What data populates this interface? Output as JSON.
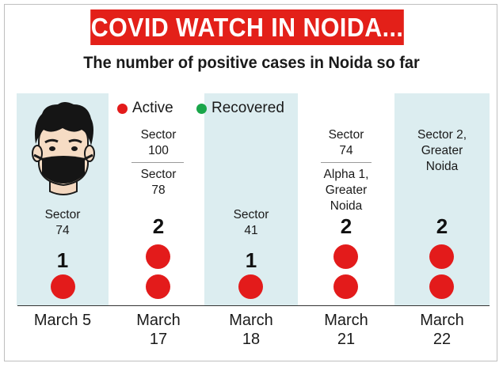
{
  "header": {
    "title": "COVID WATCH IN NOIDA...",
    "subtitle": "The number of positive cases in Noida so far"
  },
  "legend": {
    "active_label": "Active",
    "recovered_label": "Recovered",
    "active_color": "#e31b1b",
    "recovered_color": "#1aa64a"
  },
  "columns": [
    {
      "date_line1": "March 5",
      "date_line2": "",
      "sectors": [
        [
          "Sector",
          "74"
        ]
      ],
      "count": "1",
      "active": 1
    },
    {
      "date_line1": "March",
      "date_line2": "17",
      "sectors": [
        [
          "Sector",
          "100"
        ],
        [
          "Sector",
          "78"
        ]
      ],
      "count": "2",
      "active": 2
    },
    {
      "date_line1": "March",
      "date_line2": "18",
      "sectors": [
        [
          "Sector",
          "41"
        ]
      ],
      "count": "1",
      "active": 1
    },
    {
      "date_line1": "March",
      "date_line2": "21",
      "sectors": [
        [
          "Sector",
          "74"
        ],
        [
          "Alpha 1,",
          "Greater",
          "Noida"
        ]
      ],
      "count": "2",
      "active": 2
    },
    {
      "date_line1": "March",
      "date_line2": "22",
      "sectors": [
        [
          "Sector 2,",
          "Greater",
          "Noida"
        ]
      ],
      "count": "2",
      "active": 2
    }
  ]
}
